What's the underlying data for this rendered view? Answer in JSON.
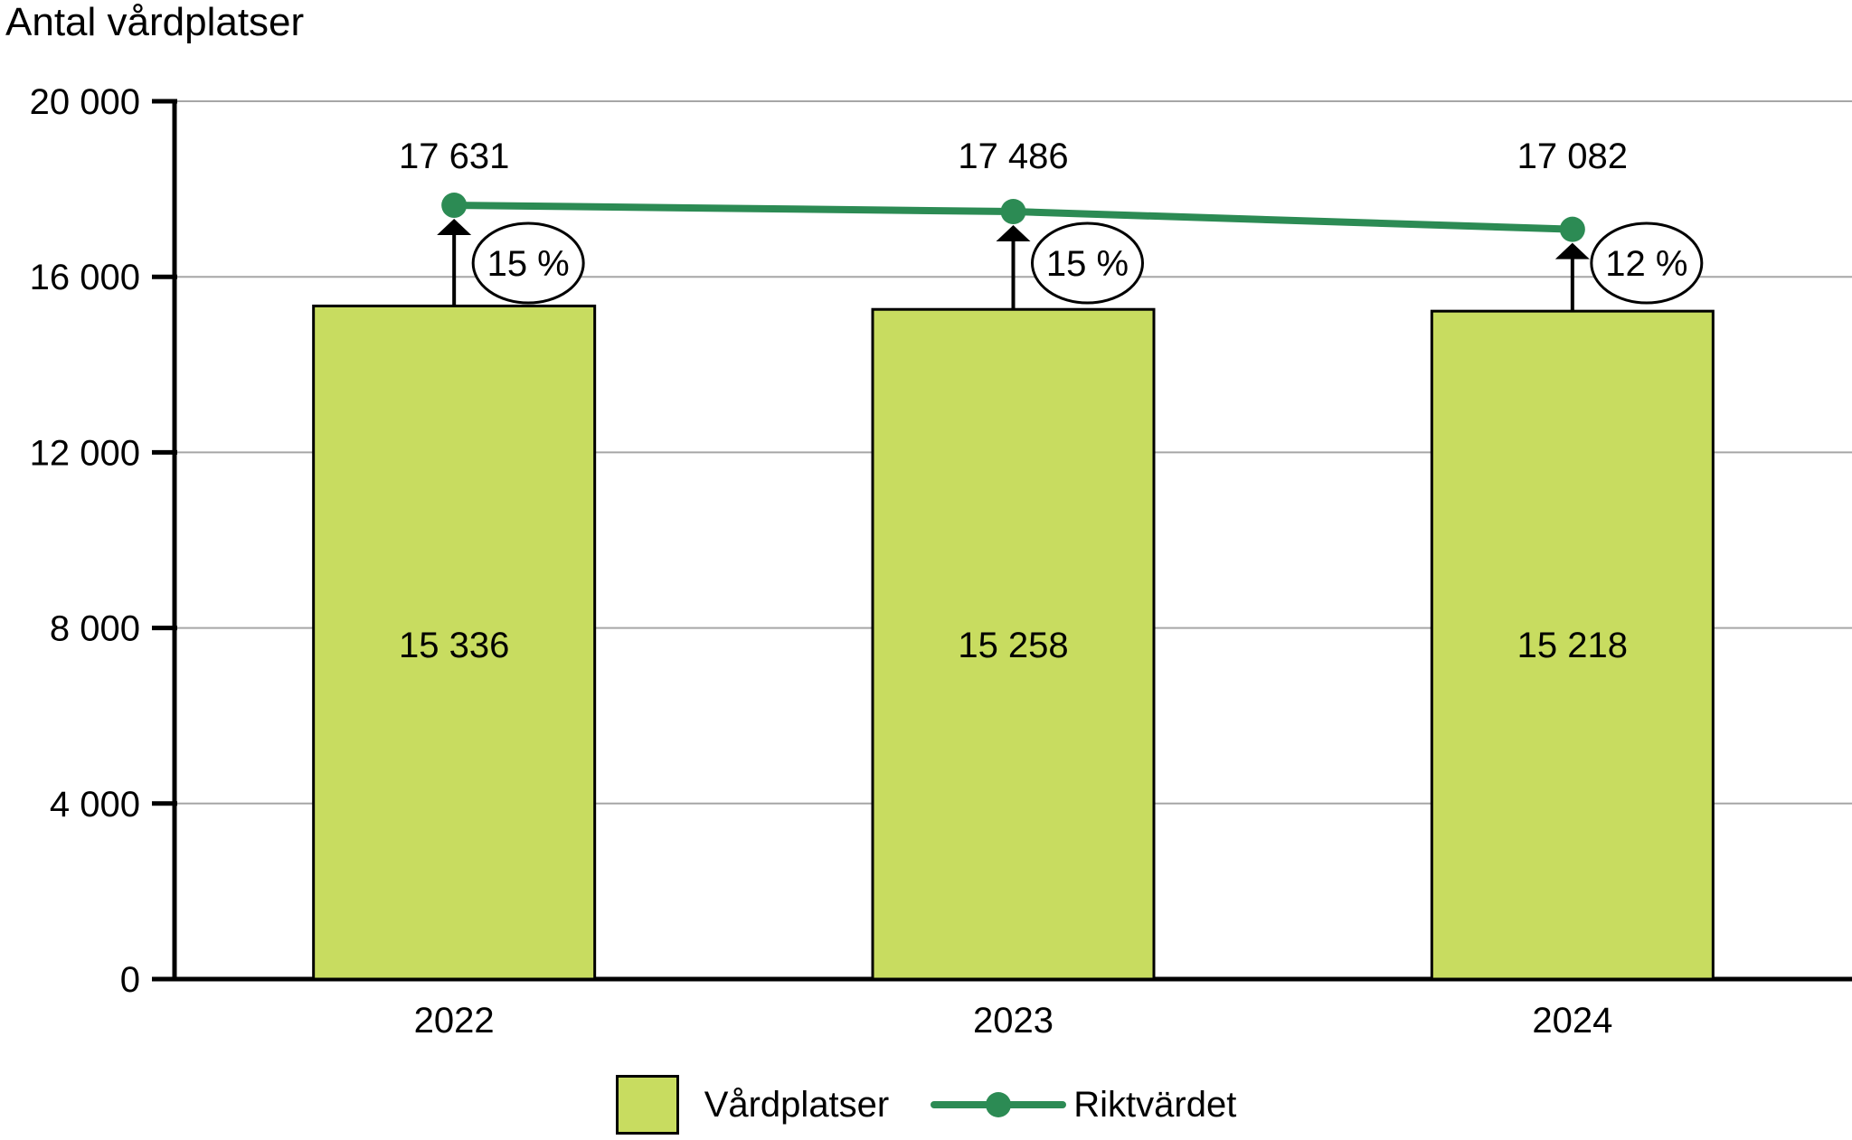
{
  "title": "Antal vårdplatser",
  "colors": {
    "bar": "#c8dc60",
    "line": "#2c8b54",
    "grid": "#a6a6a6",
    "axis": "#000000",
    "text": "#000000",
    "badge_fill": "#ffffff"
  },
  "chart_data": {
    "type": "bar",
    "title": "Antal vårdplatser",
    "categories": [
      "2022",
      "2023",
      "2024"
    ],
    "series": [
      {
        "name": "Vårdplatser",
        "type": "bar",
        "values": [
          15336,
          15258,
          15218
        ],
        "value_labels": [
          "15 336",
          "15 258",
          "15 218"
        ]
      },
      {
        "name": "Riktvärdet",
        "type": "line",
        "values": [
          17631,
          17486,
          17082
        ],
        "value_labels": [
          "17 631",
          "17 486",
          "17 082"
        ]
      }
    ],
    "gap_percent_labels": [
      "15 %",
      "15 %",
      "12 %"
    ],
    "ylim": [
      0,
      20000
    ],
    "yticks": [
      0,
      4000,
      8000,
      12000,
      16000,
      20000
    ],
    "ytick_labels": [
      "0",
      "4 000",
      "8 000",
      "12 000",
      "16 000",
      "20 000"
    ],
    "grid": "horizontal",
    "legend_position": "bottom"
  },
  "legend": {
    "items": [
      {
        "label": "Vårdplatser",
        "swatch": "bar-square"
      },
      {
        "label": "Riktvärdet",
        "swatch": "line-dot"
      }
    ]
  }
}
